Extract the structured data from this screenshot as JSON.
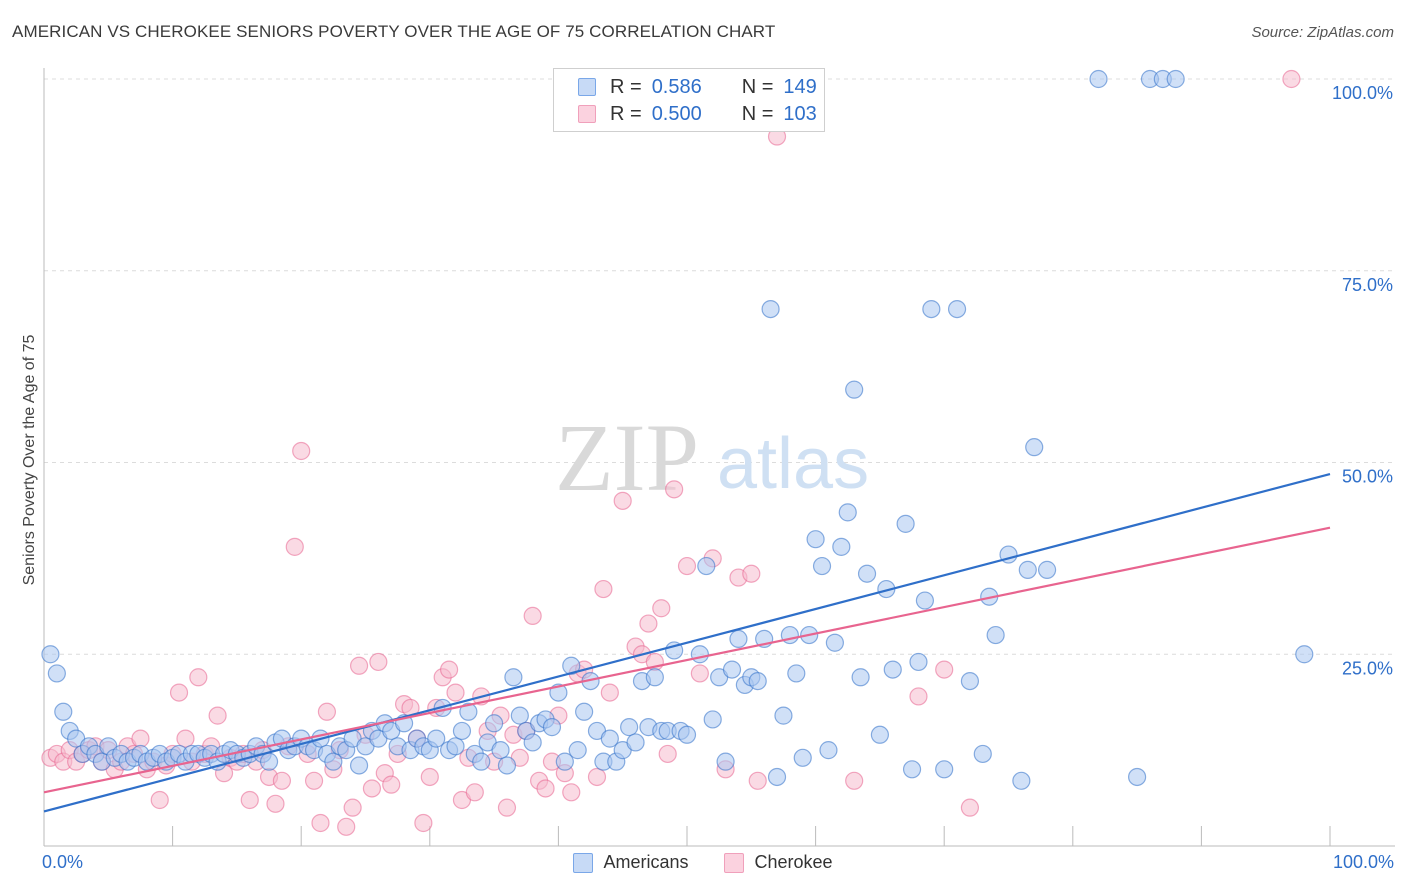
{
  "title": "AMERICAN VS CHEROKEE SENIORS POVERTY OVER THE AGE OF 75 CORRELATION CHART",
  "source": "Source: ZipAtlas.com",
  "watermark": {
    "zip": "ZIP",
    "atlas": "atlas"
  },
  "legend": {
    "r_label": "R =",
    "n_label": "N =",
    "americans": {
      "r": "0.586",
      "n": "149",
      "color": "#7aa7e8"
    },
    "cherokee": {
      "r": "0.500",
      "n": "103",
      "color": "#f0a0bb"
    }
  },
  "bottom_legend": {
    "americans": "Americans",
    "cherokee": "Cherokee"
  },
  "x_axis": {
    "min_label": "0.0%",
    "max_label": "100.0%"
  },
  "chart_data": {
    "type": "scatter",
    "title": "AMERICAN VS CHEROKEE SENIORS POVERTY OVER THE AGE OF 75 CORRELATION CHART",
    "xlabel": "",
    "ylabel": "Seniors Poverty Over the Age of 75",
    "xlim": [
      0,
      100
    ],
    "ylim": [
      0,
      100
    ],
    "y_ticks": [
      25,
      50,
      75,
      100
    ],
    "y_tick_labels": [
      "25.0%",
      "50.0%",
      "75.0%",
      "100.0%"
    ],
    "grid": "horizontal dashed",
    "series": [
      {
        "name": "Americans",
        "color": "#2f6fc9",
        "fill": "#a9c6f0",
        "trend": {
          "x0": 0,
          "y0": 4.5,
          "x1": 100,
          "y1": 48.5
        },
        "points": [
          [
            0.5,
            25
          ],
          [
            1,
            22.5
          ],
          [
            1.5,
            17.5
          ],
          [
            2,
            15
          ],
          [
            2.5,
            14
          ],
          [
            3,
            12
          ],
          [
            3.5,
            13
          ],
          [
            4,
            12
          ],
          [
            4.5,
            11
          ],
          [
            5,
            13
          ],
          [
            5.5,
            11.5
          ],
          [
            6,
            12
          ],
          [
            6.5,
            11
          ],
          [
            7,
            11.5
          ],
          [
            7.5,
            12
          ],
          [
            8,
            11
          ],
          [
            8.5,
            11.5
          ],
          [
            9,
            12
          ],
          [
            9.5,
            11
          ],
          [
            10,
            11.5
          ],
          [
            10.5,
            12
          ],
          [
            11,
            11
          ],
          [
            11.5,
            12
          ],
          [
            12,
            12
          ],
          [
            12.5,
            11.5
          ],
          [
            13,
            12
          ],
          [
            13.5,
            11
          ],
          [
            14,
            12
          ],
          [
            14.5,
            12.5
          ],
          [
            15,
            12
          ],
          [
            15.5,
            11.5
          ],
          [
            16,
            12
          ],
          [
            16.5,
            13
          ],
          [
            17,
            12
          ],
          [
            17.5,
            11
          ],
          [
            18,
            13.5
          ],
          [
            18.5,
            14
          ],
          [
            19,
            12.5
          ],
          [
            19.5,
            13
          ],
          [
            20,
            14
          ],
          [
            20.5,
            13
          ],
          [
            21,
            12.5
          ],
          [
            21.5,
            14
          ],
          [
            22,
            12
          ],
          [
            22.5,
            11
          ],
          [
            23,
            13
          ],
          [
            23.5,
            12.5
          ],
          [
            24,
            14
          ],
          [
            24.5,
            10.5
          ],
          [
            25,
            13
          ],
          [
            25.5,
            15
          ],
          [
            26,
            14
          ],
          [
            26.5,
            16
          ],
          [
            27,
            15
          ],
          [
            27.5,
            13
          ],
          [
            28,
            16
          ],
          [
            28.5,
            12.5
          ],
          [
            29,
            14
          ],
          [
            29.5,
            13
          ],
          [
            30,
            12.5
          ],
          [
            30.5,
            14
          ],
          [
            31,
            18
          ],
          [
            31.5,
            12.5
          ],
          [
            32,
            13
          ],
          [
            32.5,
            15
          ],
          [
            33,
            17.5
          ],
          [
            33.5,
            12
          ],
          [
            34,
            11
          ],
          [
            34.5,
            13.5
          ],
          [
            35,
            16
          ],
          [
            35.5,
            12.5
          ],
          [
            36,
            10.5
          ],
          [
            36.5,
            22
          ],
          [
            37,
            17
          ],
          [
            37.5,
            15
          ],
          [
            38,
            13.5
          ],
          [
            38.5,
            16
          ],
          [
            39,
            16.5
          ],
          [
            39.5,
            15.5
          ],
          [
            40,
            20
          ],
          [
            40.5,
            11
          ],
          [
            41,
            23.5
          ],
          [
            41.5,
            12.5
          ],
          [
            42,
            17.5
          ],
          [
            42.5,
            21.5
          ],
          [
            43,
            15
          ],
          [
            43.5,
            11
          ],
          [
            44,
            14
          ],
          [
            44.5,
            11
          ],
          [
            45,
            12.5
          ],
          [
            45.5,
            15.5
          ],
          [
            46,
            13.5
          ],
          [
            46.5,
            21.5
          ],
          [
            47,
            15.5
          ],
          [
            47.5,
            22
          ],
          [
            48,
            15
          ],
          [
            48.5,
            15
          ],
          [
            49,
            25.5
          ],
          [
            49.5,
            15
          ],
          [
            50,
            14.5
          ],
          [
            51,
            25
          ],
          [
            51.5,
            36.5
          ],
          [
            52,
            16.5
          ],
          [
            52.5,
            22
          ],
          [
            53,
            11
          ],
          [
            53.5,
            23
          ],
          [
            54,
            27
          ],
          [
            54.5,
            21
          ],
          [
            55,
            22
          ],
          [
            55.5,
            21.5
          ],
          [
            56,
            27
          ],
          [
            56.5,
            70
          ],
          [
            57,
            9
          ],
          [
            57.5,
            17
          ],
          [
            58,
            27.5
          ],
          [
            58.5,
            22.5
          ],
          [
            59,
            11.5
          ],
          [
            59.5,
            27.5
          ],
          [
            60,
            40
          ],
          [
            60.5,
            36.5
          ],
          [
            61,
            12.5
          ],
          [
            61.5,
            26.5
          ],
          [
            62,
            39
          ],
          [
            62.5,
            43.5
          ],
          [
            63,
            59.5
          ],
          [
            63.5,
            22
          ],
          [
            64,
            35.5
          ],
          [
            65,
            14.5
          ],
          [
            65.5,
            33.5
          ],
          [
            66,
            23
          ],
          [
            67,
            42
          ],
          [
            67.5,
            10
          ],
          [
            68,
            24
          ],
          [
            68.5,
            32
          ],
          [
            69,
            70
          ],
          [
            70,
            10
          ],
          [
            71,
            70
          ],
          [
            72,
            21.5
          ],
          [
            73,
            12
          ],
          [
            73.5,
            32.5
          ],
          [
            74,
            27.5
          ],
          [
            75,
            38
          ],
          [
            76,
            8.5
          ],
          [
            76.5,
            36
          ],
          [
            77,
            52
          ],
          [
            78,
            36
          ],
          [
            82,
            100
          ],
          [
            85,
            9
          ],
          [
            86,
            100
          ],
          [
            87,
            100
          ],
          [
            88,
            100
          ],
          [
            98,
            25
          ]
        ]
      },
      {
        "name": "Cherokee",
        "color": "#e8648f",
        "fill": "#f5bccd",
        "trend": {
          "x0": 0,
          "y0": 7,
          "x1": 100,
          "y1": 41.5
        },
        "points": [
          [
            0.5,
            11.5
          ],
          [
            1,
            12
          ],
          [
            1.5,
            11
          ],
          [
            2,
            12.5
          ],
          [
            2.5,
            11
          ],
          [
            3,
            12
          ],
          [
            3.5,
            12.5
          ],
          [
            4,
            13
          ],
          [
            4.5,
            11
          ],
          [
            5,
            12.5
          ],
          [
            5.5,
            10
          ],
          [
            6,
            11
          ],
          [
            6.5,
            13
          ],
          [
            7,
            12
          ],
          [
            7.5,
            14
          ],
          [
            8,
            10
          ],
          [
            8.5,
            11
          ],
          [
            9,
            6
          ],
          [
            9.5,
            10.5
          ],
          [
            10,
            12
          ],
          [
            10.5,
            20
          ],
          [
            11,
            14
          ],
          [
            11.5,
            11
          ],
          [
            12,
            22
          ],
          [
            12.5,
            12
          ],
          [
            13,
            13
          ],
          [
            13.5,
            17
          ],
          [
            14,
            9.5
          ],
          [
            14.5,
            11.5
          ],
          [
            15,
            11
          ],
          [
            15.5,
            12
          ],
          [
            16,
            6
          ],
          [
            16.5,
            11
          ],
          [
            17,
            12.5
          ],
          [
            17.5,
            9
          ],
          [
            18,
            5.5
          ],
          [
            18.5,
            8.5
          ],
          [
            19,
            13
          ],
          [
            19.5,
            39
          ],
          [
            20,
            51.5
          ],
          [
            20.5,
            12
          ],
          [
            21,
            8.5
          ],
          [
            21.5,
            3
          ],
          [
            22,
            17.5
          ],
          [
            22.5,
            10
          ],
          [
            23,
            12.5
          ],
          [
            23.5,
            2.5
          ],
          [
            24,
            5
          ],
          [
            24.5,
            23.5
          ],
          [
            25,
            14.5
          ],
          [
            25.5,
            7.5
          ],
          [
            26,
            24
          ],
          [
            26.5,
            9.5
          ],
          [
            27,
            8
          ],
          [
            27.5,
            12
          ],
          [
            28,
            18.5
          ],
          [
            28.5,
            18
          ],
          [
            29,
            14
          ],
          [
            29.5,
            3
          ],
          [
            30,
            9
          ],
          [
            30.5,
            18
          ],
          [
            31,
            22
          ],
          [
            31.5,
            23
          ],
          [
            32,
            20
          ],
          [
            32.5,
            6
          ],
          [
            33,
            11.5
          ],
          [
            33.5,
            7
          ],
          [
            34,
            19.5
          ],
          [
            34.5,
            15
          ],
          [
            35,
            11
          ],
          [
            35.5,
            17
          ],
          [
            36,
            5
          ],
          [
            36.5,
            14.5
          ],
          [
            37,
            11.5
          ],
          [
            37.5,
            15
          ],
          [
            38,
            30
          ],
          [
            38.5,
            8.5
          ],
          [
            39,
            7.5
          ],
          [
            39.5,
            11
          ],
          [
            40,
            17
          ],
          [
            40.5,
            9.5
          ],
          [
            41,
            7
          ],
          [
            41.5,
            22.5
          ],
          [
            42,
            23
          ],
          [
            43,
            9
          ],
          [
            43.5,
            33.5
          ],
          [
            44,
            20
          ],
          [
            45,
            45
          ],
          [
            46,
            26
          ],
          [
            46.5,
            25
          ],
          [
            47,
            29
          ],
          [
            47.5,
            24
          ],
          [
            48,
            31
          ],
          [
            48.5,
            12
          ],
          [
            49,
            46.5
          ],
          [
            50,
            36.5
          ],
          [
            51,
            22.5
          ],
          [
            52,
            37.5
          ],
          [
            53,
            10
          ],
          [
            54,
            35
          ],
          [
            55,
            35.5
          ],
          [
            55.5,
            8.5
          ],
          [
            57,
            92.5
          ],
          [
            63,
            8.5
          ],
          [
            68,
            19.5
          ],
          [
            70,
            23
          ],
          [
            72,
            5
          ],
          [
            97,
            100
          ]
        ]
      }
    ]
  }
}
